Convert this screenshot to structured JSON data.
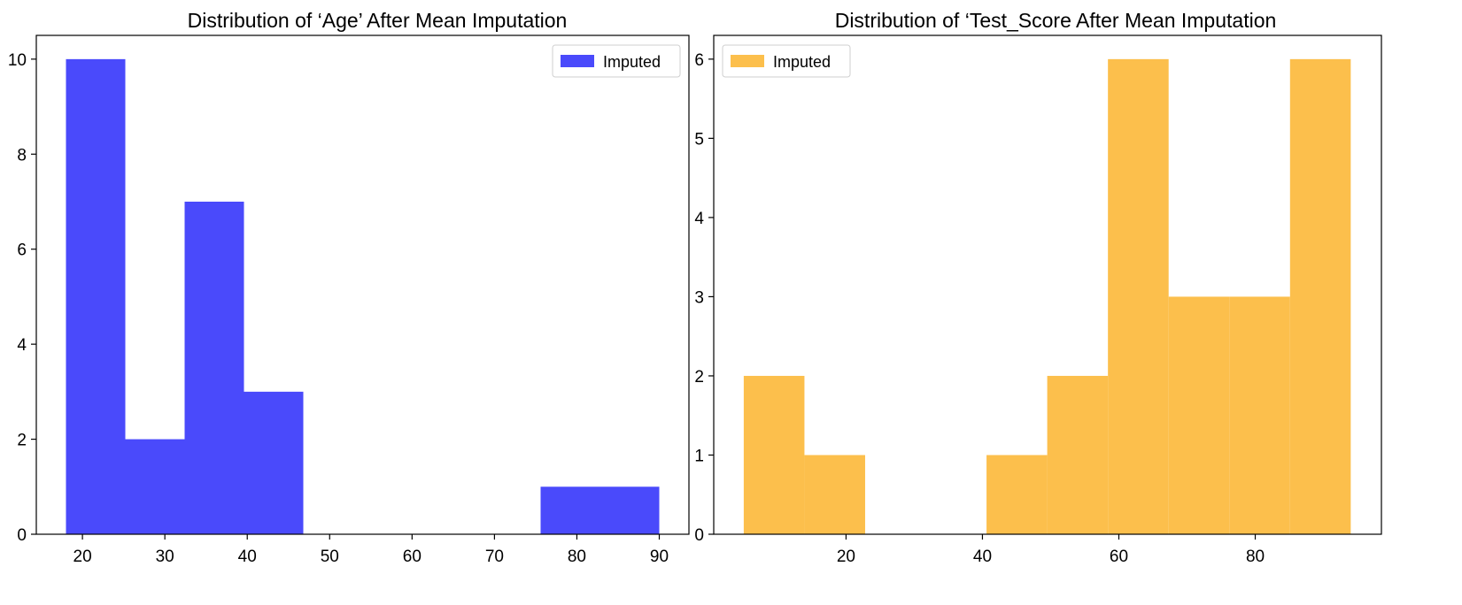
{
  "chart_data": [
    {
      "type": "bar",
      "title": "Distribution of ‘Age’ After Mean Imputation",
      "xlabel": "",
      "ylabel": "",
      "bins": [
        {
          "x0": 18,
          "x1": 25.2,
          "count": 10
        },
        {
          "x0": 25.2,
          "x1": 32.4,
          "count": 2
        },
        {
          "x0": 32.4,
          "x1": 39.6,
          "count": 7
        },
        {
          "x0": 39.6,
          "x1": 46.8,
          "count": 3
        },
        {
          "x0": 46.8,
          "x1": 54,
          "count": 0
        },
        {
          "x0": 54,
          "x1": 61.2,
          "count": 0
        },
        {
          "x0": 61.2,
          "x1": 68.4,
          "count": 0
        },
        {
          "x0": 68.4,
          "x1": 75.6,
          "count": 0
        },
        {
          "x0": 75.6,
          "x1": 82.8,
          "count": 1
        },
        {
          "x0": 82.8,
          "x1": 90,
          "count": 1
        }
      ],
      "xlim": [
        14.4,
        93.6
      ],
      "ylim": [
        0,
        10.5
      ],
      "xticks": [
        20,
        30,
        40,
        50,
        60,
        70,
        80,
        90
      ],
      "yticks": [
        0,
        2,
        4,
        6,
        8,
        10
      ],
      "series": [
        {
          "name": "Imputed",
          "color": "#4a4afb"
        }
      ],
      "legend": "upper right",
      "grid": false
    },
    {
      "type": "bar",
      "title": "Distribution of ‘Test_Score After Mean Imputation",
      "xlabel": "",
      "ylabel": "",
      "bins": [
        {
          "x0": 5,
          "x1": 13.9,
          "count": 2
        },
        {
          "x0": 13.9,
          "x1": 22.8,
          "count": 1
        },
        {
          "x0": 22.8,
          "x1": 31.7,
          "count": 0
        },
        {
          "x0": 31.7,
          "x1": 40.6,
          "count": 0
        },
        {
          "x0": 40.6,
          "x1": 49.5,
          "count": 1
        },
        {
          "x0": 49.5,
          "x1": 58.4,
          "count": 2
        },
        {
          "x0": 58.4,
          "x1": 67.3,
          "count": 6
        },
        {
          "x0": 67.3,
          "x1": 76.2,
          "count": 3
        },
        {
          "x0": 76.2,
          "x1": 85.1,
          "count": 3
        },
        {
          "x0": 85.1,
          "x1": 94,
          "count": 6
        }
      ],
      "xlim": [
        0.6,
        98.5
      ],
      "ylim": [
        0,
        6.3
      ],
      "xticks": [
        20,
        40,
        60,
        80
      ],
      "yticks": [
        0,
        1,
        2,
        3,
        4,
        5,
        6
      ],
      "series": [
        {
          "name": "Imputed",
          "color": "#fcbf4c"
        }
      ],
      "legend": "upper left",
      "grid": false
    }
  ]
}
